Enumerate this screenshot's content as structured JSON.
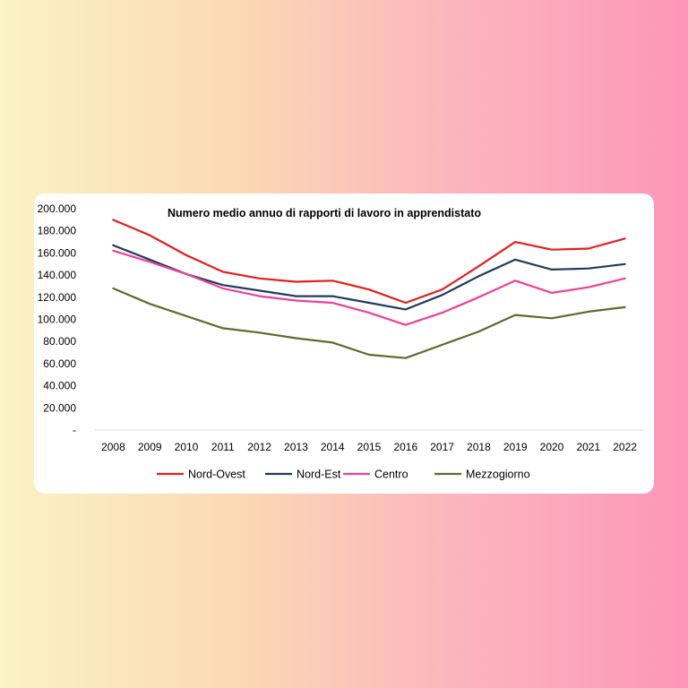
{
  "chart_data": {
    "type": "line",
    "title": "Numero medio annuo di rapporti di lavoro in apprendistato",
    "xlabel": "",
    "ylabel": "",
    "ylim": [
      0,
      200000
    ],
    "y_ticks": [
      {
        "value": 200000,
        "label": "200.000"
      },
      {
        "value": 180000,
        "label": "180.000"
      },
      {
        "value": 160000,
        "label": "160.000"
      },
      {
        "value": 140000,
        "label": "140.000"
      },
      {
        "value": 120000,
        "label": "120.000"
      },
      {
        "value": 100000,
        "label": "100.000"
      },
      {
        "value": 80000,
        "label": "80.000"
      },
      {
        "value": 60000,
        "label": "60.000"
      },
      {
        "value": 40000,
        "label": "40.000"
      },
      {
        "value": 20000,
        "label": "20.000"
      },
      {
        "value": 0,
        "label": "-"
      }
    ],
    "categories": [
      "2008",
      "2009",
      "2010",
      "2011",
      "2012",
      "2013",
      "2014",
      "2015",
      "2016",
      "2017",
      "2018",
      "2019",
      "2020",
      "2021",
      "2022"
    ],
    "grid": false,
    "legend_position": "bottom",
    "series": [
      {
        "name": "Nord-Ovest",
        "color": "#e41e1e",
        "values": [
          190000,
          176000,
          158000,
          143000,
          137000,
          134000,
          135000,
          127000,
          115000,
          127000,
          148000,
          170000,
          163000,
          164000,
          173000
        ]
      },
      {
        "name": "Nord-Est",
        "color": "#203a60",
        "values": [
          167000,
          154000,
          141000,
          131000,
          126000,
          121000,
          121000,
          115000,
          109000,
          122000,
          139000,
          154000,
          145000,
          146000,
          150000
        ]
      },
      {
        "name": "Centro",
        "color": "#f0409a",
        "values": [
          162000,
          152000,
          141000,
          128000,
          121000,
          117000,
          115000,
          106000,
          95000,
          106000,
          120000,
          135000,
          124000,
          129000,
          137000
        ]
      },
      {
        "name": "Mezzogiorno",
        "color": "#5e6b2c",
        "values": [
          128000,
          114000,
          103000,
          92000,
          88000,
          83000,
          79000,
          68000,
          65000,
          77000,
          89000,
          104000,
          101000,
          107000,
          111000
        ]
      }
    ]
  }
}
